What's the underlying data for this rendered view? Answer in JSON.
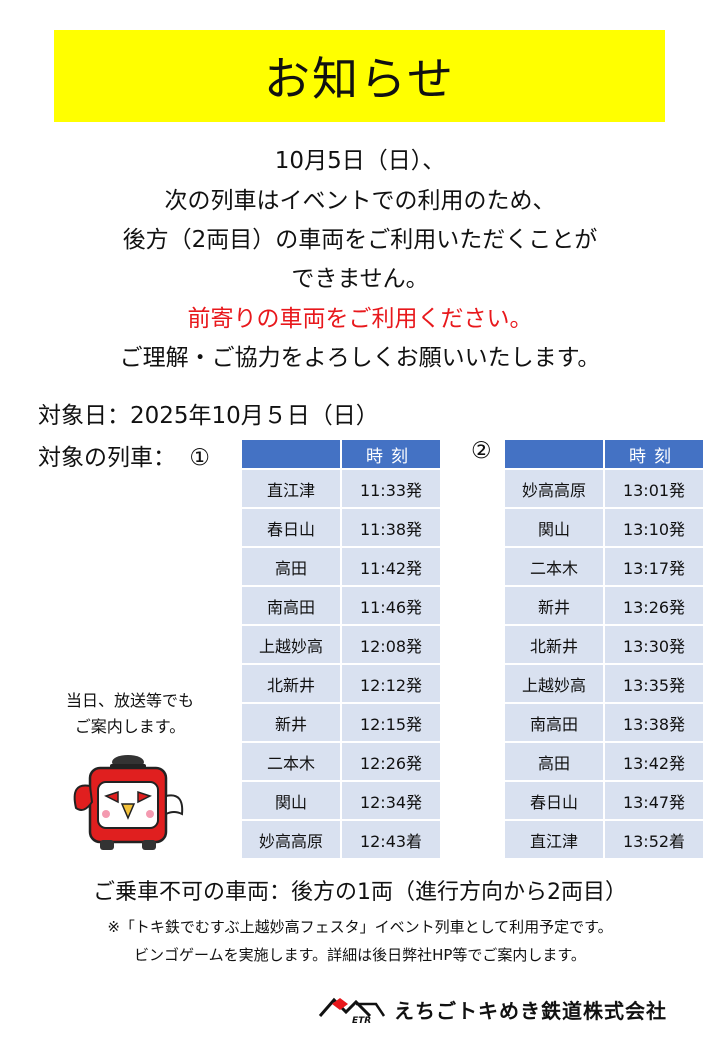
{
  "title": "お知らせ",
  "notice": {
    "line1": "10月5日（日）、",
    "line2": "次の列車はイベントでの利用のため、",
    "line3": "後方（2両目）の車両をご利用いただくことが",
    "line4": "できません。",
    "line5_red": "前寄りの車両をご利用ください。",
    "line6": "ご理解・ご協力をよろしくお願いいたします。"
  },
  "target_date": "対象日：2025年10月５日（日）",
  "target_train_label": "対象の列車：",
  "circle1": "①",
  "circle2": "②",
  "time_header": "時刻",
  "table1": [
    {
      "station": "直江津",
      "time": "11:33発"
    },
    {
      "station": "春日山",
      "time": "11:38発"
    },
    {
      "station": "高田",
      "time": "11:42発"
    },
    {
      "station": "南高田",
      "time": "11:46発"
    },
    {
      "station": "上越妙高",
      "time": "12:08発"
    },
    {
      "station": "北新井",
      "time": "12:12発"
    },
    {
      "station": "新井",
      "time": "12:15発"
    },
    {
      "station": "二本木",
      "time": "12:26発"
    },
    {
      "station": "関山",
      "time": "12:34発"
    },
    {
      "station": "妙高高原",
      "time": "12:43着"
    }
  ],
  "table2": [
    {
      "station": "妙高高原",
      "time": "13:01発"
    },
    {
      "station": "関山",
      "time": "13:10発"
    },
    {
      "station": "二本木",
      "time": "13:17発"
    },
    {
      "station": "新井",
      "time": "13:26発"
    },
    {
      "station": "北新井",
      "time": "13:30発"
    },
    {
      "station": "上越妙高",
      "time": "13:35発"
    },
    {
      "station": "南高田",
      "time": "13:38発"
    },
    {
      "station": "高田",
      "time": "13:42発"
    },
    {
      "station": "春日山",
      "time": "13:47発"
    },
    {
      "station": "直江津",
      "time": "13:52着"
    }
  ],
  "broadcast": {
    "line1": "当日、放送等でも",
    "line2": "ご案内します。"
  },
  "no_board": "ご乗車不可の車両：後方の1両（進行方向から2両目）",
  "footnote1": "※「トキ鉄でむすぶ上越妙高フェスタ」イベント列車として利用予定です。",
  "footnote2": "ビンゴゲームを実施します。詳細は後日弊社HP等でご案内します。",
  "company": {
    "logo_text": "ETR",
    "name": "えちごトキめき鉄道株式会社"
  },
  "colors": {
    "title_bg": "#ffff00",
    "accent_red": "#e8181c",
    "table_header": "#4472c4",
    "table_cell": "#d9e1f0"
  }
}
